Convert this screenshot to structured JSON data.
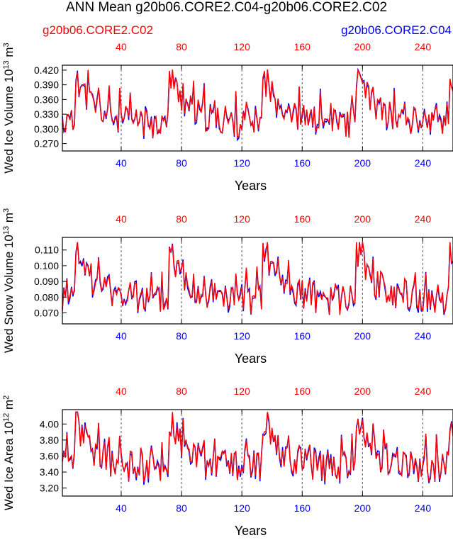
{
  "figure": {
    "title": "ANN Mean g20b06.CORE2.C04-g20b06.CORE2.C02",
    "legend": {
      "left": "g20b06.CORE2.C02",
      "right": "g20b06.CORE2.C04",
      "left_color": "#ff0000",
      "right_color": "#0000ff"
    }
  },
  "chart_data": [
    {
      "type": "line",
      "ylabel": "Wed Ice Volume 10",
      "ylabel_exp": "13",
      "ylabel_unit": "m",
      "ylabel_unit_exp": "3",
      "xlabel": "Years",
      "xlim": [
        1,
        260
      ],
      "ylim": [
        0.255,
        0.43
      ],
      "yticks": [
        0.27,
        0.3,
        0.33,
        0.36,
        0.39,
        0.42
      ],
      "ytick_labels": [
        "0.270",
        "0.300",
        "0.330",
        "0.360",
        "0.390",
        "0.420"
      ],
      "xticks": [
        40,
        80,
        120,
        160,
        200,
        240
      ],
      "xtick_labels": [
        "40",
        "80",
        "120",
        "160",
        "200",
        "240"
      ],
      "top_xtick_labels": [
        "40",
        "80",
        "120",
        "160",
        "200",
        "240"
      ],
      "series": [
        {
          "name": "g20b06.CORE2.C02",
          "color": "#ff0000"
        },
        {
          "name": "g20b06.CORE2.C04",
          "color": "#0000ff"
        }
      ],
      "params": {
        "base": 0.31,
        "amp": 0.105,
        "noise": 0.03,
        "min": 0.256,
        "max": 0.421,
        "seed": 11
      }
    },
    {
      "type": "line",
      "ylabel": "Wed Snow Volume 10",
      "ylabel_exp": "13",
      "ylabel_unit": "m",
      "ylabel_unit_exp": "3",
      "xlabel": "Years",
      "xlim": [
        1,
        260
      ],
      "ylim": [
        0.063,
        0.118
      ],
      "yticks": [
        0.07,
        0.08,
        0.09,
        0.1,
        0.11
      ],
      "ytick_labels": [
        "0.070",
        "0.080",
        "0.090",
        "0.100",
        "0.110"
      ],
      "xticks": [
        40,
        80,
        120,
        160,
        200,
        240
      ],
      "xtick_labels": [
        "40",
        "80",
        "120",
        "160",
        "200",
        "240"
      ],
      "top_xtick_labels": [
        "40",
        "80",
        "120",
        "160",
        "200",
        "240"
      ],
      "series": [
        {
          "name": "g20b06.CORE2.C02",
          "color": "#ff0000"
        },
        {
          "name": "g20b06.CORE2.C04",
          "color": "#0000ff"
        }
      ],
      "params": {
        "base": 0.078,
        "amp": 0.034,
        "noise": 0.01,
        "min": 0.064,
        "max": 0.115,
        "seed": 23
      }
    },
    {
      "type": "line",
      "ylabel": "Wed Ice Area 10",
      "ylabel_exp": "12",
      "ylabel_unit": "m",
      "ylabel_unit_exp": "2",
      "xlabel": "Years",
      "xlim": [
        1,
        260
      ],
      "ylim": [
        3.1,
        4.18
      ],
      "yticks": [
        3.2,
        3.4,
        3.6,
        3.8,
        4.0
      ],
      "ytick_labels": [
        "3.20",
        "3.40",
        "3.60",
        "3.80",
        "4.00"
      ],
      "xticks": [
        40,
        80,
        120,
        160,
        200,
        240
      ],
      "xtick_labels": [
        "40",
        "80",
        "120",
        "160",
        "200",
        "240"
      ],
      "top_xtick_labels": [
        "40",
        "80",
        "120",
        "160",
        "200",
        "240"
      ],
      "series": [
        {
          "name": "g20b06.CORE2.C02",
          "color": "#ff0000"
        },
        {
          "name": "g20b06.CORE2.C04",
          "color": "#0000ff"
        }
      ],
      "params": {
        "base": 3.45,
        "amp": 0.62,
        "noise": 0.2,
        "min": 3.11,
        "max": 4.15,
        "seed": 37
      }
    }
  ]
}
